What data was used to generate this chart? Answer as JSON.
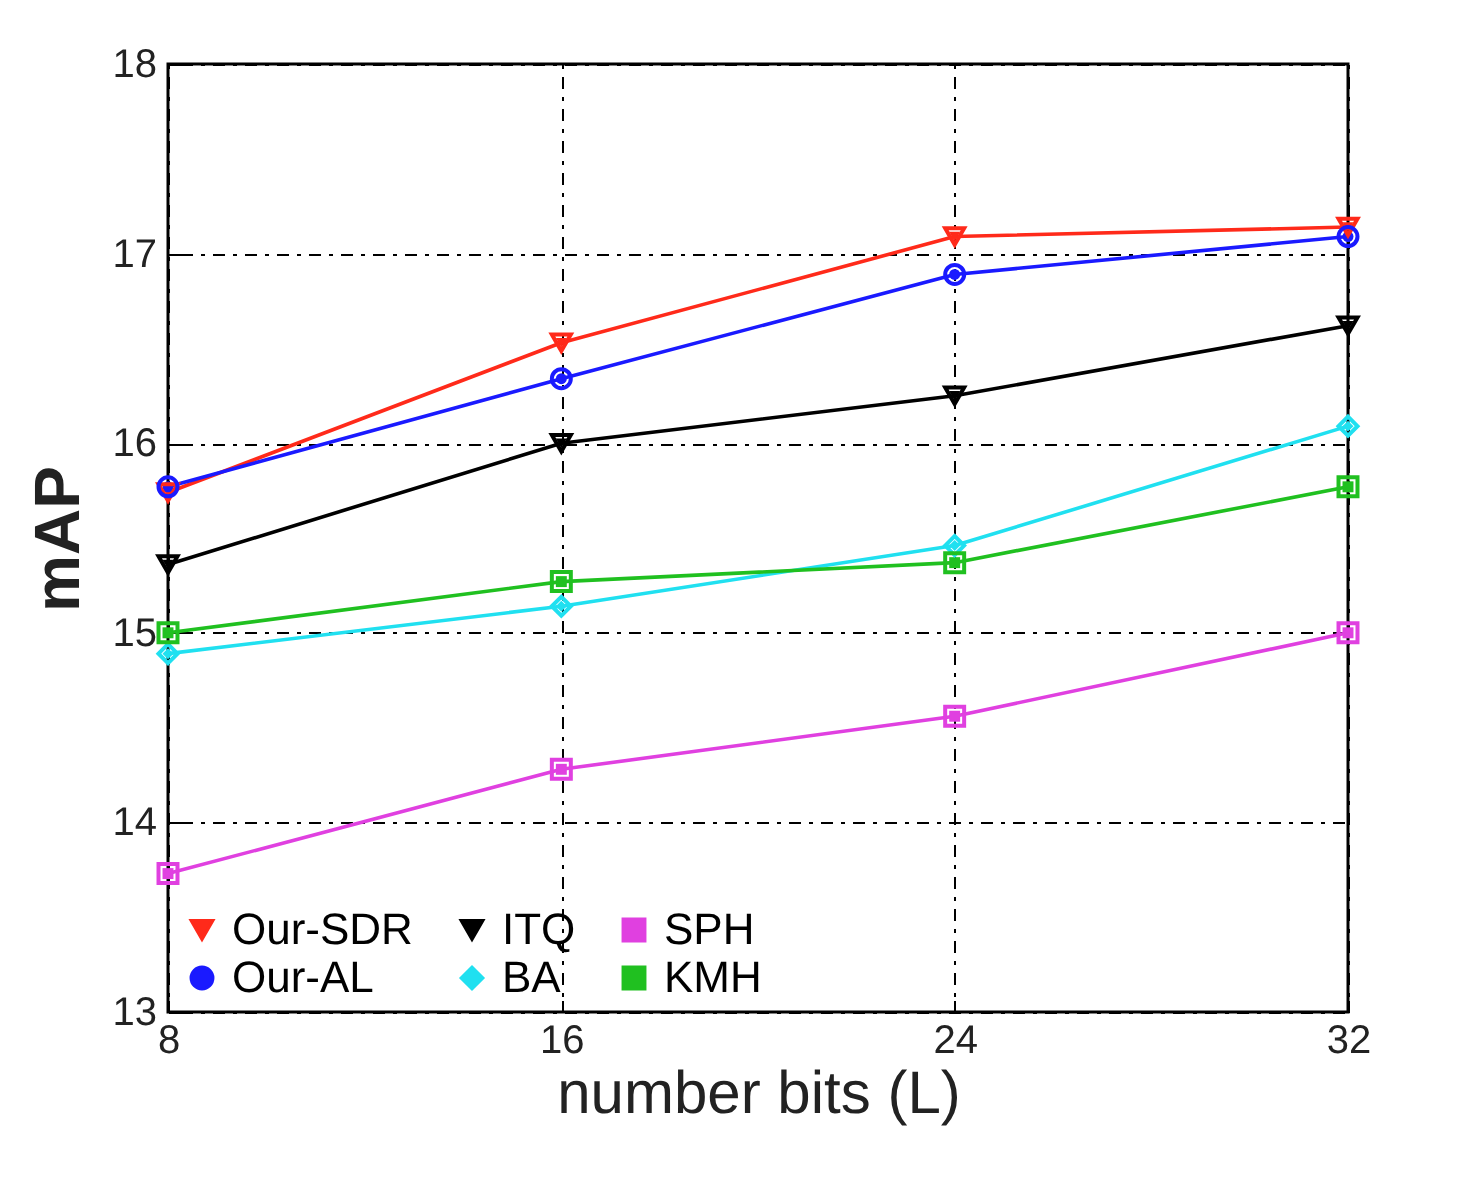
{
  "chart_data": {
    "type": "line",
    "xlabel": "number bits (L)",
    "ylabel": "mAP",
    "x": [
      8,
      16,
      24,
      32
    ],
    "xlim": [
      8,
      32
    ],
    "xticks": [
      8,
      16,
      24,
      32
    ],
    "ylim": [
      13,
      18
    ],
    "yticks": [
      13,
      14,
      15,
      16,
      17,
      18
    ],
    "grid": true,
    "legend": "bottom",
    "line_style": "solid",
    "series": [
      {
        "name": "Our-SDR",
        "color": "#ff2a1a",
        "marker": "triangle",
        "values": [
          15.74,
          16.53,
          17.09,
          17.14
        ]
      },
      {
        "name": "ITQ",
        "color": "#000000",
        "marker": "triangle",
        "values": [
          15.36,
          16.0,
          16.25,
          16.62
        ]
      },
      {
        "name": "SPH",
        "color": "#e040e0",
        "marker": "square",
        "values": [
          13.73,
          14.28,
          14.56,
          15.0
        ]
      },
      {
        "name": "Our-AL",
        "color": "#1a1aff",
        "marker": "circle",
        "values": [
          15.77,
          16.34,
          16.89,
          17.09
        ]
      },
      {
        "name": "BA",
        "color": "#20e0f0",
        "marker": "diamond",
        "values": [
          14.89,
          15.14,
          15.46,
          16.09
        ]
      },
      {
        "name": "KMH",
        "color": "#20c020",
        "marker": "square",
        "values": [
          15.0,
          15.27,
          15.37,
          15.77
        ]
      }
    ]
  }
}
